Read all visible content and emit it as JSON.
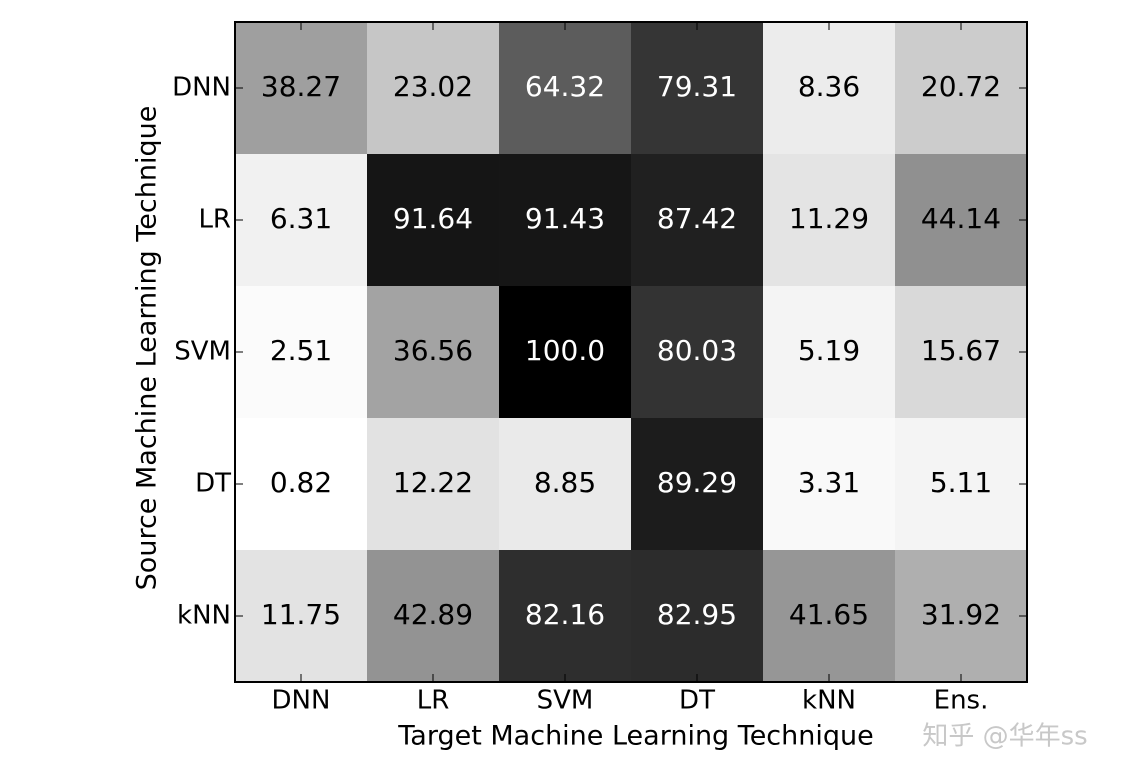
{
  "chart_data": {
    "type": "heatmap",
    "x_label": "Target Machine Learning Technique",
    "y_label": "Source Machine Learning Technique",
    "x_categories": [
      "DNN",
      "LR",
      "SVM",
      "DT",
      "kNN",
      "Ens."
    ],
    "y_categories": [
      "DNN",
      "LR",
      "SVM",
      "DT",
      "kNN"
    ],
    "colormap": "gray_r",
    "values": [
      [
        38.27,
        23.02,
        64.32,
        79.31,
        8.36,
        20.72
      ],
      [
        6.31,
        91.64,
        91.43,
        87.42,
        11.29,
        44.14
      ],
      [
        2.51,
        36.56,
        100.0,
        80.03,
        5.19,
        15.67
      ],
      [
        0.82,
        12.22,
        8.85,
        89.29,
        3.31,
        5.11
      ],
      [
        11.75,
        42.89,
        82.16,
        82.95,
        41.65,
        31.92
      ]
    ],
    "value_labels": [
      [
        "38.27",
        "23.02",
        "64.32",
        "79.31",
        "8.36",
        "20.72"
      ],
      [
        "6.31",
        "91.64",
        "91.43",
        "87.42",
        "11.29",
        "44.14"
      ],
      [
        "2.51",
        "36.56",
        "100.0",
        "80.03",
        "5.19",
        "15.67"
      ],
      [
        "0.82",
        "12.22",
        "8.85",
        "89.29",
        "3.31",
        "5.11"
      ],
      [
        "11.75",
        "42.89",
        "82.16",
        "82.95",
        "41.65",
        "31.92"
      ]
    ],
    "watermark": "知乎 @华年ss"
  }
}
